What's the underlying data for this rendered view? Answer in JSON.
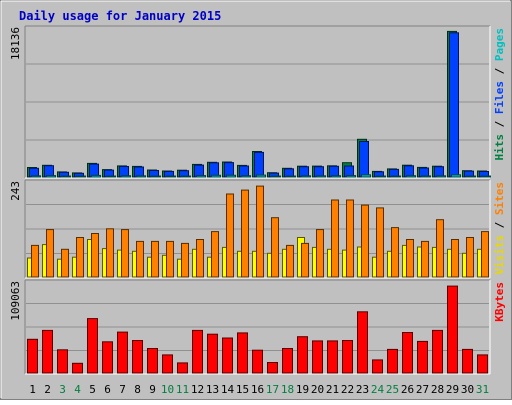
{
  "chart_data": {
    "type": "bar",
    "title": "Daily usage for January 2015",
    "categories": [
      "1",
      "2",
      "3",
      "4",
      "5",
      "6",
      "7",
      "8",
      "9",
      "10",
      "11",
      "12",
      "13",
      "14",
      "15",
      "16",
      "17",
      "18",
      "19",
      "20",
      "21",
      "22",
      "23",
      "24",
      "25",
      "26",
      "27",
      "28",
      "29",
      "30",
      "31"
    ],
    "weekend_days": [
      "3",
      "4",
      "10",
      "11",
      "17",
      "18",
      "24",
      "25",
      "31"
    ],
    "grid": true,
    "panels": [
      {
        "id": "hits",
        "max_label": "18136",
        "ylim": [
          0,
          18136
        ],
        "axis_labels": [
          {
            "text": "Hits",
            "color": "#008040"
          },
          {
            "text": "Files",
            "color": "#0040ff"
          },
          {
            "text": "Pages",
            "color": "#00c0c0"
          }
        ],
        "series": [
          {
            "name": "Hits",
            "color": "#008040",
            "values": [
              1150,
              1420,
              620,
              500,
              1640,
              900,
              1340,
              1280,
              850,
              730,
              820,
              1520,
              1780,
              1810,
              1400,
              3080,
              520,
              1050,
              1310,
              1320,
              1360,
              1730,
              4560,
              680,
              980,
              1430,
              1160,
              1310,
              17600,
              760,
              720
            ]
          },
          {
            "name": "Files",
            "color": "#0040ff",
            "values": [
              1050,
              1370,
              570,
              450,
              1560,
              830,
              1270,
              1210,
              790,
              680,
              760,
              1440,
              1720,
              1740,
              1330,
              2970,
              470,
              990,
              1240,
              1250,
              1290,
              1330,
              4290,
              630,
              920,
              1350,
              1090,
              1240,
              17440,
              710,
              670
            ]
          },
          {
            "name": "Pages",
            "color": "#00c0c0",
            "values": [
              150,
              170,
              90,
              70,
              190,
              110,
              160,
              150,
              100,
              90,
              100,
              170,
              200,
              200,
              160,
              230,
              70,
              120,
              150,
              150,
              160,
              170,
              260,
              80,
              110,
              160,
              130,
              150,
              270,
              90,
              90
            ]
          }
        ]
      },
      {
        "id": "visits",
        "max_label": "243",
        "ylim": [
          0,
          243
        ],
        "axis_labels": [
          {
            "text": "Visits",
            "color": "#e8d800"
          },
          {
            "text": "Sites",
            "color": "#ff8000"
          }
        ],
        "series": [
          {
            "name": "Visits",
            "color": "#ffff00",
            "values": [
              48,
              82,
              45,
              50,
              95,
              72,
              68,
              65,
              50,
              55,
              45,
              70,
              50,
              75,
              65,
              65,
              60,
              70,
              100,
              75,
              70,
              68,
              76,
              50,
              65,
              80,
              76,
              75,
              70,
              60,
              70
            ]
          },
          {
            "name": "Sites",
            "color": "#ff8000",
            "values": [
              80,
              120,
              70,
              100,
              110,
              122,
              120,
              90,
              90,
              90,
              85,
              95,
              115,
              210,
              220,
              230,
              150,
              80,
              85,
              120,
              195,
              195,
              182,
              175,
              125,
              95,
              90,
              145,
              95,
              100,
              115
            ]
          }
        ]
      },
      {
        "id": "kbytes",
        "max_label": "109063",
        "ylim": [
          0,
          109063
        ],
        "axis_labels": [
          {
            "text": "KBytes",
            "color": "#ff0000"
          }
        ],
        "series": [
          {
            "name": "KBytes",
            "color": "#ff0000",
            "values": [
              40000,
              50500,
              27500,
              11500,
              64500,
              37000,
              48500,
              38500,
              29000,
              21500,
              12000,
              50500,
              46000,
              41500,
              47500,
              27000,
              12500,
              29000,
              43000,
              38000,
              38000,
              38500,
              72500,
              15500,
              28000,
              48000,
              37500,
              50500,
              103000,
              28000,
              21500
            ]
          }
        ]
      }
    ]
  }
}
